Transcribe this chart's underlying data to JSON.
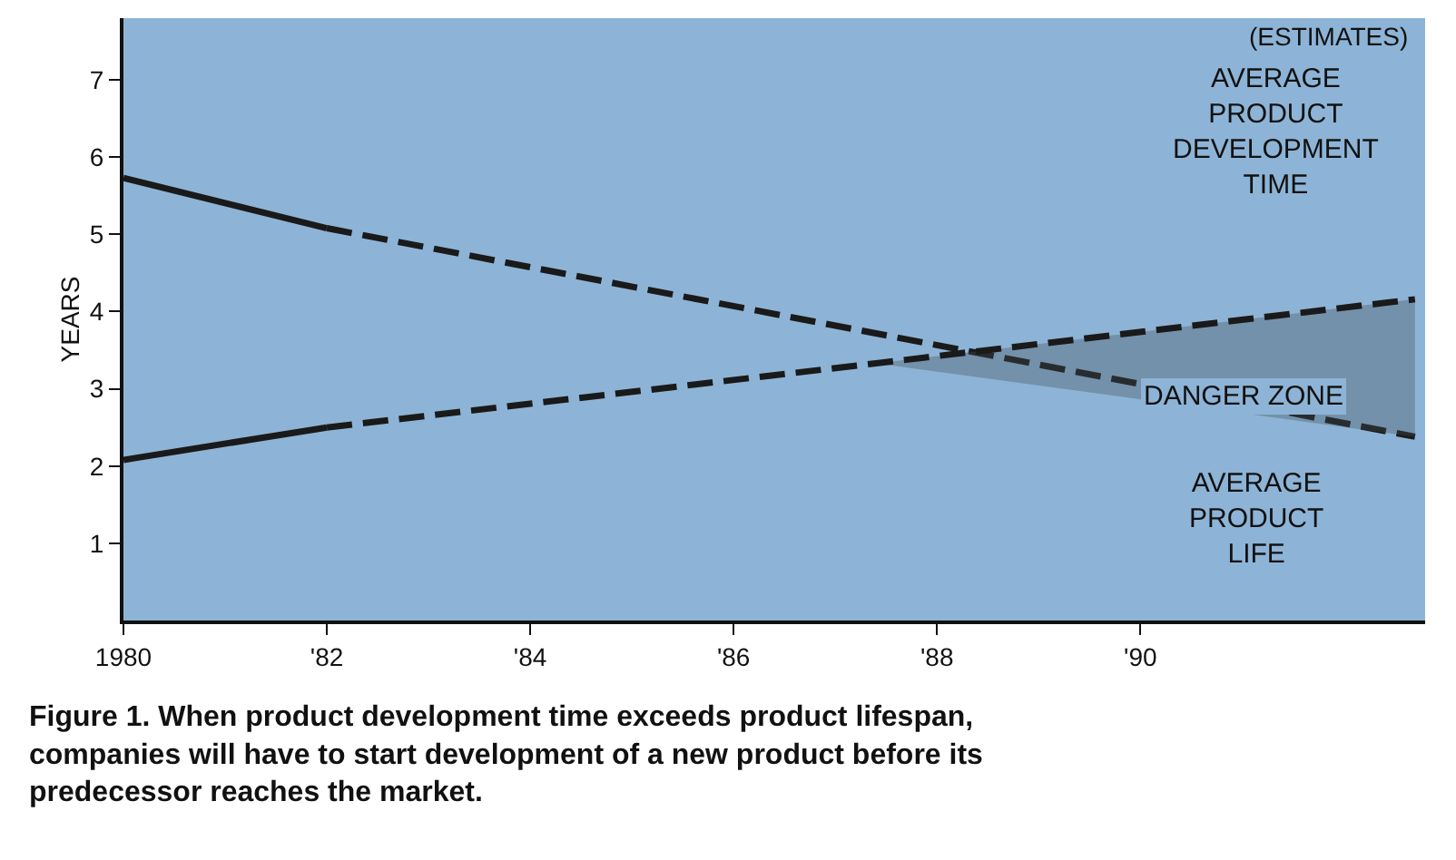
{
  "chart_data": {
    "type": "line",
    "series": [
      {
        "x": [
          1980,
          1982
        ],
        "values": [
          5.73,
          5.08
        ],
        "color": "#1a1a1a",
        "line_style": "solid"
      },
      {
        "x": [
          1982,
          1992.7
        ],
        "values": [
          5.08,
          2.38
        ],
        "color": "#1a1a1a",
        "line_style": "dashed"
      },
      {
        "x": [
          1980,
          1982
        ],
        "values": [
          2.08,
          2.5
        ],
        "color": "#1a1a1a",
        "line_style": "solid"
      },
      {
        "x": [
          1982,
          1987.4,
          1992.7
        ],
        "values": [
          2.5,
          3.33,
          4.16
        ],
        "lower": [
          null,
          3.33,
          2.38
        ],
        "upper": [
          null,
          3.33,
          4.16
        ],
        "color": "#1a1a1a",
        "line_style": "dashed"
      }
    ],
    "ylabel": "YEARS",
    "xlim": [
      1980,
      1992.8
    ],
    "ylim": [
      0,
      7.8
    ],
    "xticks": [
      {
        "value": 1980,
        "label": "1980"
      },
      {
        "value": 1982,
        "label": "'82"
      },
      {
        "value": 1984,
        "label": "'84"
      },
      {
        "value": 1986,
        "label": "'86"
      },
      {
        "value": 1988,
        "label": "'88"
      },
      {
        "value": 1990,
        "label": "'90"
      }
    ],
    "yticks": [
      1,
      2,
      3,
      4,
      5,
      6,
      7
    ],
    "grid": false,
    "marker": "none",
    "annotations": [
      "(ESTIMATES)",
      "AVERAGE\nPRODUCT\nDEVELOPMENT\nTIME",
      "DANGER ZONE",
      "AVERAGE\nPRODUCT\nLIFE",
      "Figure 1. When product development time exceeds product lifespan,\ncompanies will have to start development of a new product before its\npredecessor reaches the market."
    ]
  }
}
